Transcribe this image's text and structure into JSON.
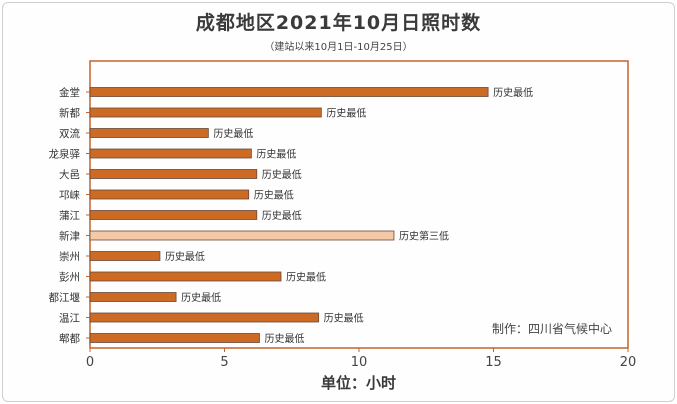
{
  "chart_data": {
    "type": "bar",
    "orientation": "horizontal",
    "title": "成都地区2021年10月日照时数",
    "subtitle": "（建站以来10月1日-10月25日）",
    "xlabel": "单位：小时",
    "xlim": [
      0,
      20
    ],
    "xticks": [
      "0",
      "5",
      "10",
      "15",
      "20"
    ],
    "annotation": "制作：四川省气候中心",
    "colors": {
      "normal": "#cd6a24",
      "highlight": "#f3c9a6"
    },
    "bars": [
      {
        "category": "金堂",
        "value": 14.8,
        "label": "历史最低",
        "highlight": false
      },
      {
        "category": "新都",
        "value": 8.6,
        "label": "历史最低",
        "highlight": false
      },
      {
        "category": "双流",
        "value": 4.4,
        "label": "历史最低",
        "highlight": false
      },
      {
        "category": "龙泉驿",
        "value": 6.0,
        "label": "历史最低",
        "highlight": false
      },
      {
        "category": "大邑",
        "value": 6.2,
        "label": "历史最低",
        "highlight": false
      },
      {
        "category": "邛崃",
        "value": 5.9,
        "label": "历史最低",
        "highlight": false
      },
      {
        "category": "蒲江",
        "value": 6.2,
        "label": "历史最低",
        "highlight": false
      },
      {
        "category": "新津",
        "value": 11.3,
        "label": "历史第三低",
        "highlight": true
      },
      {
        "category": "崇州",
        "value": 2.6,
        "label": "历史最低",
        "highlight": false
      },
      {
        "category": "彭州",
        "value": 7.1,
        "label": "历史最低",
        "highlight": false
      },
      {
        "category": "都江堰",
        "value": 3.2,
        "label": "历史最低",
        "highlight": false
      },
      {
        "category": "温江",
        "value": 8.5,
        "label": "历史最低",
        "highlight": false
      },
      {
        "category": "郫都",
        "value": 6.3,
        "label": "历史最低",
        "highlight": false
      }
    ]
  }
}
